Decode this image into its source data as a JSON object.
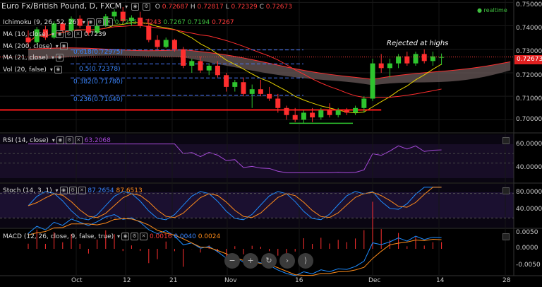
{
  "header": {
    "symbol": "Euro Fx/British Pound, D, FXCM",
    "o_label": "O",
    "o": "0.72687",
    "h_label": "H",
    "h": "0.72817",
    "l_label": "L",
    "l": "0.72329",
    "c_label": "C",
    "c": "0.72673",
    "realtime": "realtime"
  },
  "indicators": {
    "ichimoku": {
      "label": "Ichimoku (9, 26, 52, 26)",
      "v1": "0.7235",
      "v2": "0.7243",
      "v3": "0.7267",
      "v4": "0.7194",
      "v5": "0.7267"
    },
    "ma10": {
      "label": "MA (10, close)",
      "value": "0.7239"
    },
    "ma200": {
      "label": "MA (200, close)"
    },
    "ma21": {
      "label": "MA (21, close)"
    },
    "vol": {
      "label": "Vol (20, false)"
    }
  },
  "fib": [
    {
      "label": "0.618(0.72975)",
      "price": 0.72975
    },
    {
      "label": "0.5(0.72378)",
      "price": 0.72378
    },
    {
      "label": "0.382(0.71780)",
      "price": 0.7178
    },
    {
      "label": "0.236(0.71040)",
      "price": 0.7104
    }
  ],
  "annotation": "Rejected at highs",
  "price_axis": {
    "ticks": [
      "0.75000",
      "0.74000",
      "0.73000",
      "0.72000",
      "0.71000",
      "0.70000"
    ],
    "last": "0.72673"
  },
  "rsi": {
    "label": "RSI (14, close)",
    "value": "63.2068",
    "ticks": [
      "60.0000",
      "40.0000"
    ]
  },
  "stoch": {
    "label": "Stoch (14, 3, 1)",
    "v1": "87.2654",
    "v2": "87.6513",
    "ticks": [
      "80.0000",
      "40.0000"
    ]
  },
  "macd": {
    "label": "MACD (12, 26, close, 9, false, true)",
    "v1": "0.0016",
    "v2": "0.0040",
    "v3": "0.0024",
    "ticks": [
      "0.0050",
      "0.0000",
      "-0.0050"
    ]
  },
  "x_axis": [
    "Oct",
    "21",
    "Nov",
    "16",
    "Dec",
    "14",
    "28"
  ],
  "x_axis_extra": [
    "12"
  ],
  "nav_buttons": [
    "−",
    "+",
    "↻",
    "›",
    "⟩"
  ],
  "colors": {
    "up": "#2ec42e",
    "down": "#ff2e2e",
    "cloud": "#6a5a5a",
    "rsi": "#a64ad9",
    "stochK": "#1e8cff",
    "stochD": "#ff8c1a",
    "fib": "#4a78ff"
  },
  "chart_data": {
    "type": "candlestick",
    "candles": [
      [
        0.735,
        0.738,
        0.731,
        0.733
      ],
      [
        0.733,
        0.7395,
        0.732,
        0.7385
      ],
      [
        0.7385,
        0.74,
        0.734,
        0.735
      ],
      [
        0.735,
        0.742,
        0.7345,
        0.741
      ],
      [
        0.741,
        0.7415,
        0.737,
        0.738
      ],
      [
        0.738,
        0.744,
        0.7375,
        0.743
      ],
      [
        0.743,
        0.7445,
        0.739,
        0.74
      ],
      [
        0.74,
        0.742,
        0.736,
        0.737
      ],
      [
        0.737,
        0.741,
        0.7365,
        0.74
      ],
      [
        0.74,
        0.745,
        0.7395,
        0.744
      ],
      [
        0.744,
        0.747,
        0.742,
        0.746
      ],
      [
        0.746,
        0.748,
        0.741,
        0.742
      ],
      [
        0.742,
        0.7445,
        0.74,
        0.7435
      ],
      [
        0.7435,
        0.746,
        0.739,
        0.74
      ],
      [
        0.74,
        0.743,
        0.733,
        0.734
      ],
      [
        0.734,
        0.736,
        0.73,
        0.731
      ],
      [
        0.731,
        0.735,
        0.7305,
        0.734
      ],
      [
        0.734,
        0.7345,
        0.729,
        0.73
      ],
      [
        0.73,
        0.731,
        0.722,
        0.723
      ],
      [
        0.723,
        0.726,
        0.72,
        0.725
      ],
      [
        0.725,
        0.727,
        0.72,
        0.721
      ],
      [
        0.721,
        0.724,
        0.719,
        0.723
      ],
      [
        0.723,
        0.725,
        0.718,
        0.719
      ],
      [
        0.719,
        0.72,
        0.712,
        0.714
      ],
      [
        0.714,
        0.717,
        0.712,
        0.716
      ],
      [
        0.716,
        0.718,
        0.71,
        0.711
      ],
      [
        0.711,
        0.715,
        0.705,
        0.713
      ],
      [
        0.713,
        0.717,
        0.71,
        0.711
      ],
      [
        0.711,
        0.714,
        0.708,
        0.709
      ],
      [
        0.709,
        0.711,
        0.703,
        0.705
      ],
      [
        0.705,
        0.706,
        0.7,
        0.702
      ],
      [
        0.702,
        0.705,
        0.699,
        0.7
      ],
      [
        0.7,
        0.704,
        0.6985,
        0.703
      ],
      [
        0.703,
        0.705,
        0.699,
        0.701
      ],
      [
        0.701,
        0.705,
        0.7,
        0.704
      ],
      [
        0.704,
        0.707,
        0.701,
        0.702
      ],
      [
        0.702,
        0.705,
        0.701,
        0.704
      ],
      [
        0.704,
        0.705,
        0.702,
        0.703
      ],
      [
        0.703,
        0.706,
        0.702,
        0.705
      ],
      [
        0.705,
        0.71,
        0.703,
        0.709
      ],
      [
        0.709,
        0.726,
        0.708,
        0.724
      ],
      [
        0.724,
        0.728,
        0.72,
        0.722
      ],
      [
        0.722,
        0.726,
        0.718,
        0.724
      ],
      [
        0.724,
        0.728,
        0.722,
        0.727
      ],
      [
        0.727,
        0.729,
        0.723,
        0.724
      ],
      [
        0.724,
        0.729,
        0.723,
        0.728
      ],
      [
        0.728,
        0.73,
        0.724,
        0.725
      ],
      [
        0.725,
        0.729,
        0.723,
        0.727
      ],
      [
        0.7267,
        0.7282,
        0.7233,
        0.7267
      ]
    ]
  }
}
